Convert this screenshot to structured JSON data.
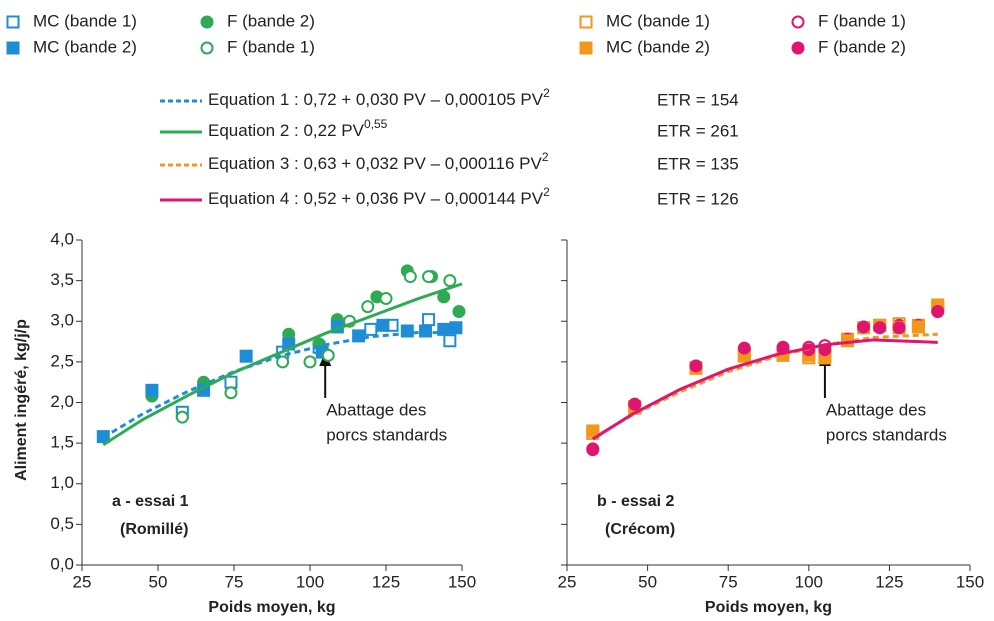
{
  "chart_data": [
    {
      "type": "scatter",
      "panel_label": [
        "a - essai 1",
        "(Romillé)"
      ],
      "annotation": [
        "Abattage des",
        "porcs standards"
      ],
      "annotation_x": 105,
      "x_label": "Poids moyen, kg",
      "y_label": "Aliment ingéré, kg/j/p",
      "xlim": [
        25,
        150
      ],
      "xticks": [
        25,
        50,
        75,
        100,
        125,
        150
      ],
      "ylim": [
        0,
        4
      ],
      "yticks": [
        {
          "value": 0,
          "label": "0,0"
        },
        {
          "value": 0.5,
          "label": "0,5"
        },
        {
          "value": 1,
          "label": "1,0"
        },
        {
          "value": 1.5,
          "label": "1,5"
        },
        {
          "value": 2,
          "label": "2,0"
        },
        {
          "value": 2.5,
          "label": "2,5"
        },
        {
          "value": 3,
          "label": "3,0"
        },
        {
          "value": 3.5,
          "label": "3,5"
        },
        {
          "value": 4,
          "label": "4,0"
        }
      ],
      "series": [
        {
          "name": "MC (bande 1)",
          "color": "#1f8dd6",
          "marker": "square",
          "filled": false,
          "x": [
            58,
            74,
            91,
            103,
            120,
            127,
            139,
            146
          ],
          "values": [
            1.88,
            2.25,
            2.62,
            2.68,
            2.9,
            2.95,
            3.02,
            2.76
          ]
        },
        {
          "name": "F (bande 2)",
          "color": "#2eaa55",
          "marker": "circle",
          "filled": true,
          "x": [
            48,
            65,
            93,
            103,
            109,
            122,
            132,
            140,
            144,
            149
          ],
          "values": [
            2.08,
            2.25,
            2.84,
            2.72,
            3.02,
            3.3,
            3.62,
            3.55,
            3.3,
            3.12
          ]
        },
        {
          "name": "MC (bande 2)",
          "color": "#1f8dd6",
          "marker": "square",
          "filled": true,
          "x": [
            32,
            48,
            65,
            79,
            93,
            104,
            109,
            116,
            124,
            132,
            138,
            144,
            148
          ],
          "values": [
            1.58,
            2.15,
            2.15,
            2.57,
            2.72,
            2.62,
            2.93,
            2.82,
            2.95,
            2.88,
            2.88,
            2.9,
            2.92
          ]
        },
        {
          "name": "F (bande 1)",
          "color": "#2eaa55",
          "marker": "circle",
          "filled": false,
          "x": [
            58,
            74,
            91,
            100,
            106,
            113,
            119,
            125,
            133,
            139,
            146
          ],
          "values": [
            1.82,
            2.12,
            2.5,
            2.5,
            2.58,
            3.0,
            3.18,
            3.28,
            3.55,
            3.55,
            3.5
          ]
        },
        {
          "name": "Equation 1 : 0,72 + 0,030 PV – 0,000105 PV",
          "name_sup": "2",
          "etr": "ETR = 154",
          "color": "#1f8dd6",
          "marker": "line",
          "dashed": true,
          "x": [
            32,
            45,
            60,
            75,
            90,
            105,
            120,
            135,
            150
          ],
          "values": [
            1.57,
            1.86,
            2.14,
            2.38,
            2.57,
            2.71,
            2.81,
            2.86,
            2.86
          ]
        },
        {
          "name": "Equation 2 : 0,22 PV",
          "name_sup": "0,55",
          "etr": "ETR = 261",
          "color": "#2eaa55",
          "marker": "line",
          "dashed": false,
          "x": [
            32,
            45,
            60,
            75,
            90,
            105,
            120,
            135,
            150
          ],
          "values": [
            1.48,
            1.79,
            2.09,
            2.37,
            2.61,
            2.85,
            3.06,
            3.27,
            3.46
          ]
        }
      ]
    },
    {
      "type": "scatter",
      "panel_label": [
        "b - essai 2",
        "(Crécom)"
      ],
      "annotation": [
        "Abattage des",
        "porcs standards"
      ],
      "annotation_x": 105,
      "x_label": "Poids moyen, kg",
      "xlim": [
        25,
        150
      ],
      "xticks": [
        25,
        50,
        75,
        100,
        125,
        150
      ],
      "ylim": [
        0,
        4
      ],
      "series": [
        {
          "name": "MC (bande 1)",
          "color": "#f3961c",
          "marker": "square",
          "filled": false,
          "x": [
            33,
            46,
            65,
            80,
            92,
            100,
            105,
            112,
            122,
            128,
            134,
            140
          ],
          "values": [
            1.62,
            1.95,
            2.42,
            2.58,
            2.6,
            2.55,
            2.55,
            2.78,
            2.95,
            2.97,
            2.95,
            3.18
          ]
        },
        {
          "name": "F (bande 1)",
          "color": "#e0156f",
          "marker": "circle",
          "filled": false,
          "x": [
            33,
            46,
            65,
            80,
            92,
            100,
            105,
            112,
            117,
            122,
            128,
            134,
            140
          ],
          "values": [
            1.42,
            1.97,
            2.45,
            2.65,
            2.68,
            2.68,
            2.7,
            2.78,
            2.93,
            2.93,
            2.95,
            2.95,
            3.12
          ]
        },
        {
          "name": "MC (bande 2)",
          "color": "#f3961c",
          "marker": "square",
          "filled": true,
          "x": [
            33,
            46,
            65,
            80,
            92,
            100,
            105,
            112,
            117,
            122,
            128,
            134,
            140
          ],
          "values": [
            1.65,
            1.93,
            2.43,
            2.57,
            2.58,
            2.58,
            2.55,
            2.76,
            2.92,
            2.95,
            2.92,
            2.93,
            3.2
          ]
        },
        {
          "name": "F (bande 2)",
          "color": "#e0156f",
          "marker": "circle",
          "filled": true,
          "x": [
            33,
            46,
            65,
            80,
            92,
            100,
            105,
            117,
            122,
            128,
            140
          ],
          "values": [
            1.43,
            1.98,
            2.45,
            2.67,
            2.67,
            2.65,
            2.65,
            2.93,
            2.92,
            2.92,
            3.12
          ]
        },
        {
          "name": "Equation 3 : 0,63 + 0,032 PV – 0,000116 PV",
          "name_sup": "2",
          "etr": "ETR = 135",
          "color": "#f3961c",
          "marker": "line",
          "dashed": true,
          "x": [
            33,
            45,
            60,
            75,
            90,
            105,
            120,
            140
          ],
          "values": [
            1.56,
            1.84,
            2.13,
            2.38,
            2.57,
            2.71,
            2.8,
            2.84
          ]
        },
        {
          "name": "Equation 4 : 0,52 + 0,036 PV – 0,000144 PV",
          "name_sup": "2",
          "etr": "ETR = 126",
          "color": "#e0156f",
          "marker": "line",
          "dashed": false,
          "x": [
            33,
            45,
            60,
            75,
            90,
            105,
            120,
            140
          ],
          "values": [
            1.55,
            1.85,
            2.16,
            2.41,
            2.59,
            2.71,
            2.77,
            2.74
          ]
        }
      ]
    }
  ]
}
